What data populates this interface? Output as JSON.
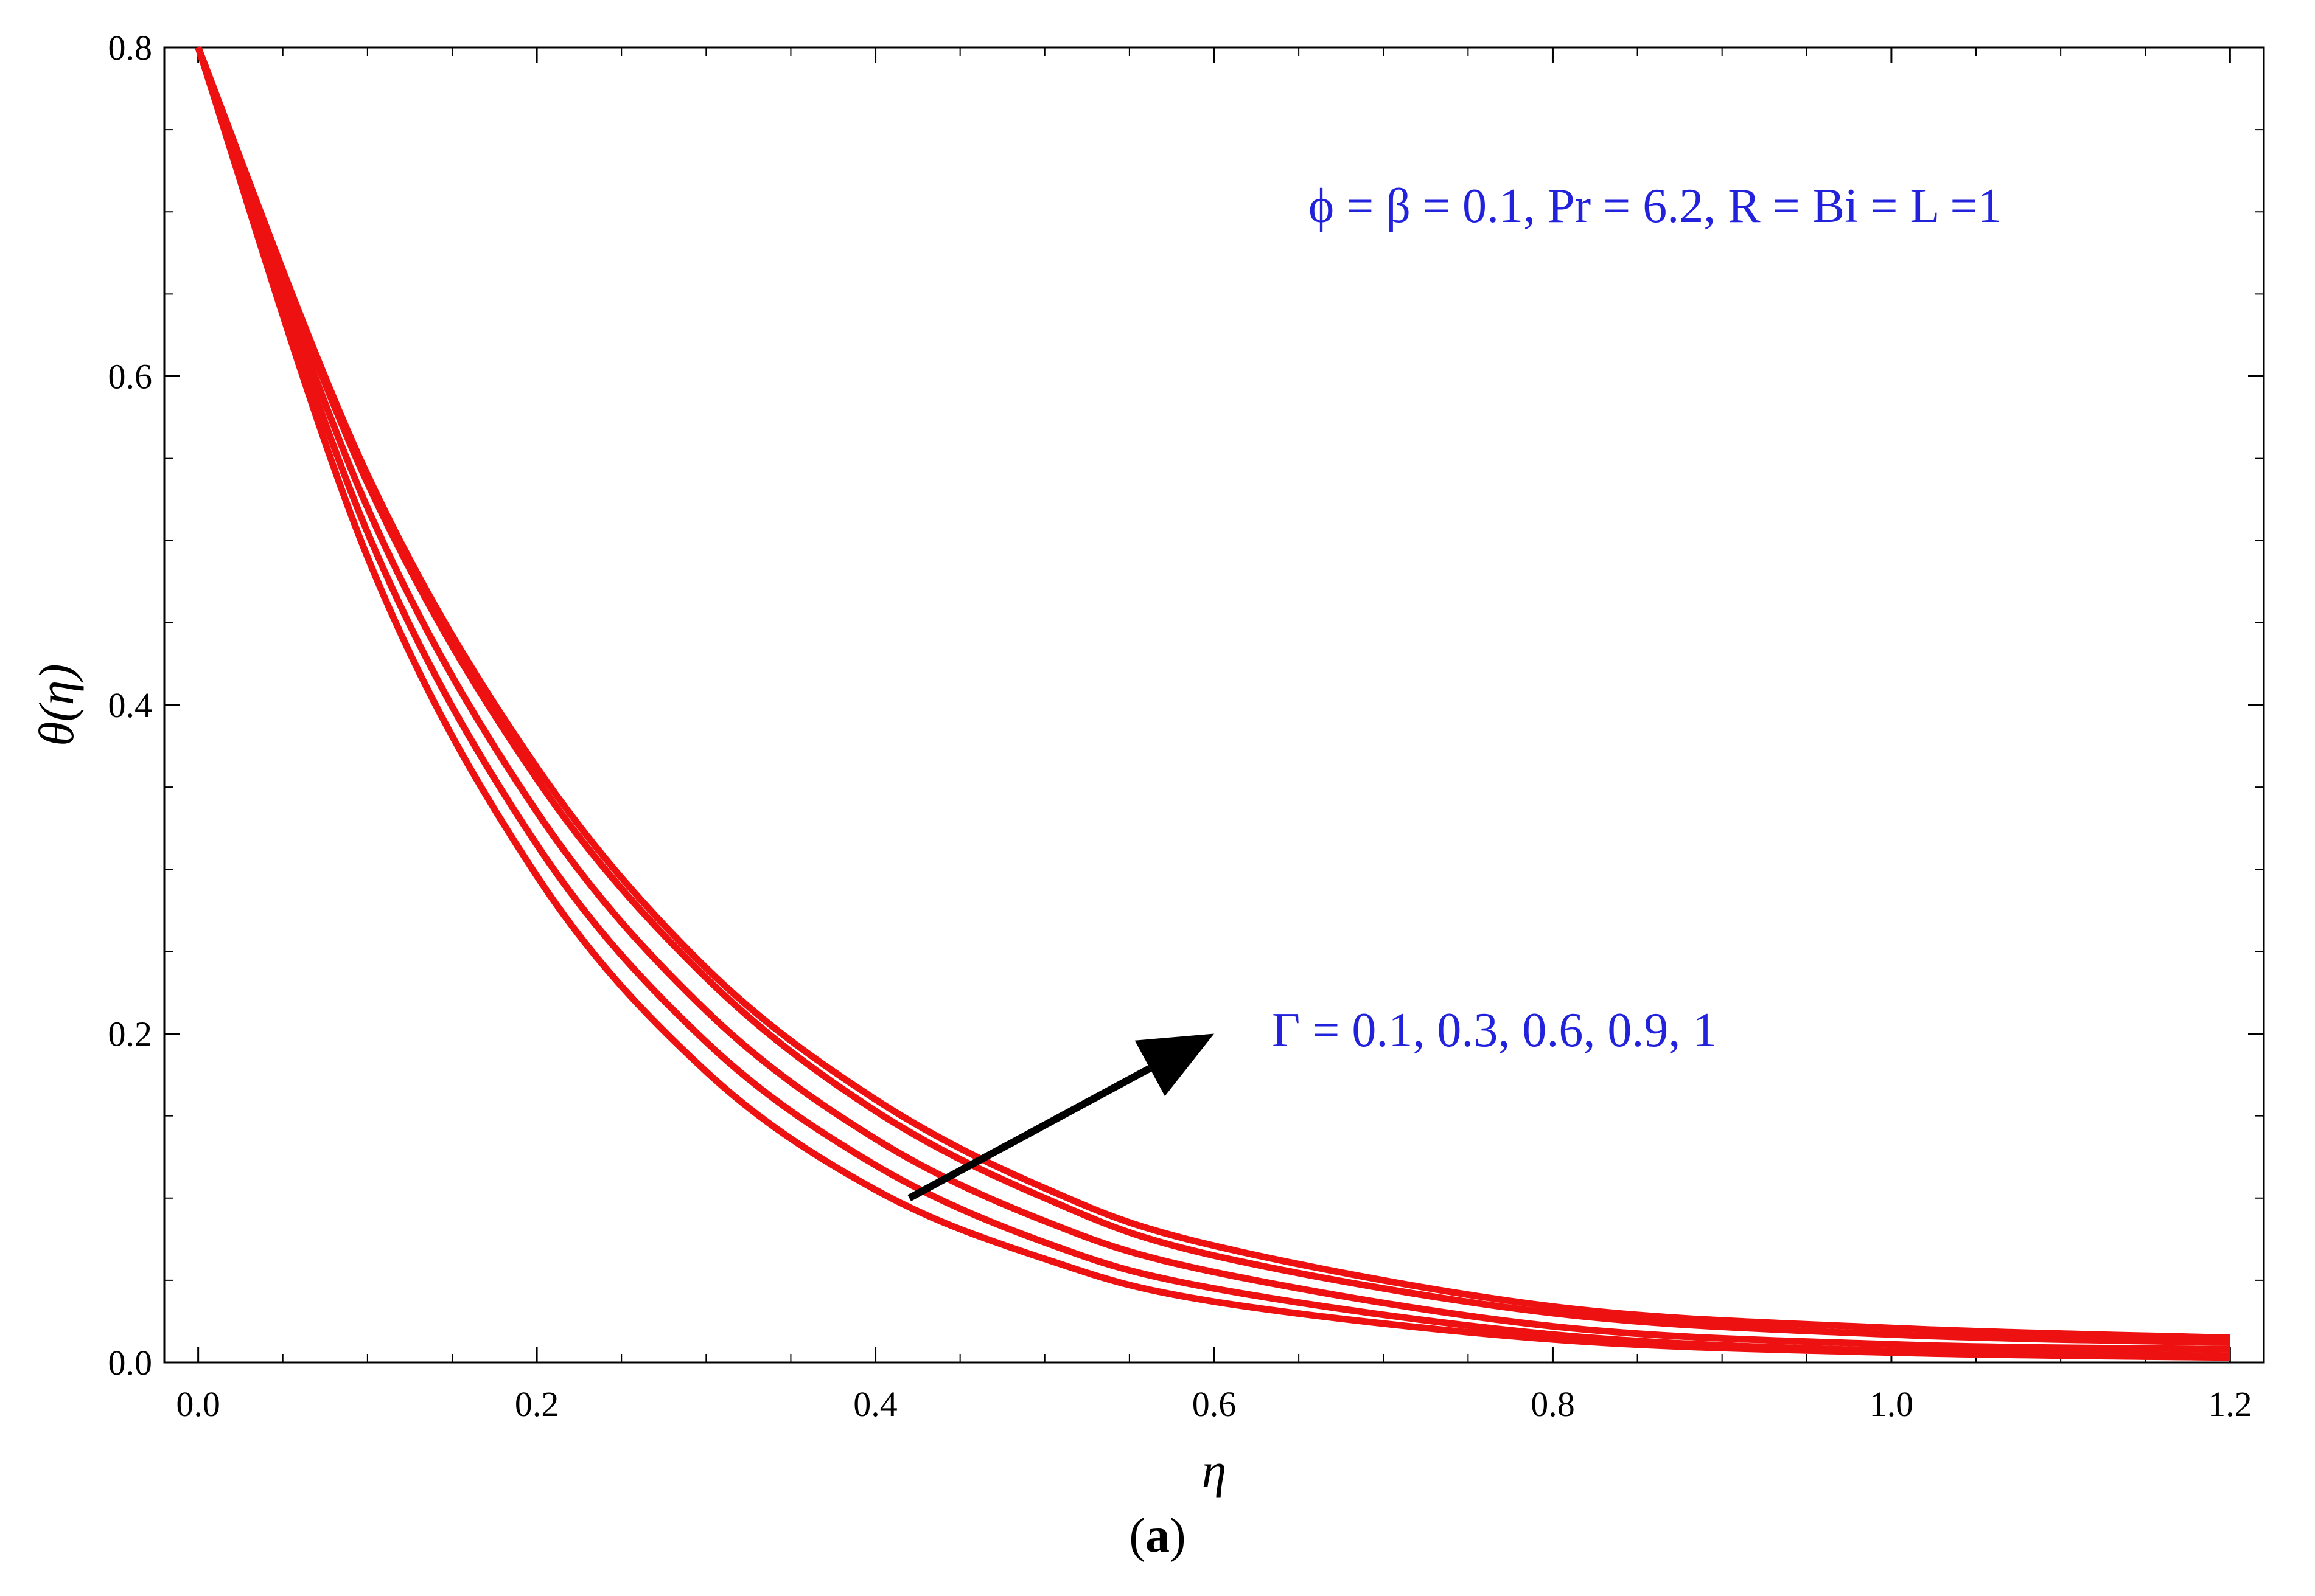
{
  "chart_data": {
    "type": "line",
    "xlabel": "η",
    "ylabel": "θ(η)",
    "xlim": [
      -0.02,
      1.22
    ],
    "ylim": [
      0.0,
      0.8
    ],
    "x_ticks": [
      "0.0",
      "0.2",
      "0.4",
      "0.6",
      "0.8",
      "1.0",
      "1.2"
    ],
    "y_ticks": [
      "0.0",
      "0.2",
      "0.4",
      "0.6",
      "0.8"
    ],
    "x_tick_values": [
      0.0,
      0.2,
      0.4,
      0.6,
      0.8,
      1.0,
      1.2
    ],
    "y_tick_values": [
      0.0,
      0.2,
      0.4,
      0.6,
      0.8
    ],
    "series": [
      {
        "x": [
          0.0,
          0.1,
          0.2,
          0.3,
          0.4,
          0.5,
          0.6,
          0.8,
          1.0,
          1.2
        ],
        "values": [
          0.8,
          0.49,
          0.296,
          0.177,
          0.105,
          0.063,
          0.037,
          0.014,
          0.006,
          0.003
        ]
      },
      {
        "x": [
          0.0,
          0.1,
          0.2,
          0.3,
          0.4,
          0.5,
          0.6,
          0.8,
          1.0,
          1.2
        ],
        "values": [
          0.8,
          0.505,
          0.315,
          0.195,
          0.12,
          0.073,
          0.045,
          0.017,
          0.007,
          0.004
        ]
      },
      {
        "x": [
          0.0,
          0.1,
          0.2,
          0.3,
          0.4,
          0.5,
          0.6,
          0.8,
          1.0,
          1.2
        ],
        "values": [
          0.8,
          0.52,
          0.335,
          0.214,
          0.136,
          0.086,
          0.055,
          0.022,
          0.011,
          0.008
        ]
      },
      {
        "x": [
          0.0,
          0.1,
          0.2,
          0.3,
          0.4,
          0.5,
          0.6,
          0.8,
          1.0,
          1.2
        ],
        "values": [
          0.8,
          0.535,
          0.355,
          0.234,
          0.153,
          0.1,
          0.065,
          0.03,
          0.017,
          0.012
        ]
      },
      {
        "x": [
          0.0,
          0.1,
          0.2,
          0.3,
          0.4,
          0.5,
          0.6,
          0.8,
          1.0,
          1.2
        ],
        "values": [
          0.8,
          0.54,
          0.362,
          0.24,
          0.16,
          0.106,
          0.071,
          0.034,
          0.021,
          0.015
        ]
      }
    ],
    "line_color": "#ee1111",
    "annotations": {
      "params": "ϕ = β = 0.1, Pr = 6.2, R = Bi = L =1",
      "gamma": "Γ = 0.1, 0.3, 0.6, 0.9, 1"
    },
    "arrow": {
      "from": [
        0.42,
        0.1
      ],
      "to": [
        0.6,
        0.2
      ]
    },
    "annotation_color": "#2222dd",
    "caption_letter": "a"
  }
}
